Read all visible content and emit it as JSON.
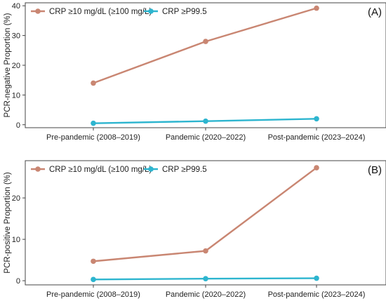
{
  "chart_data": [
    {
      "type": "line",
      "panel_label": "(A)",
      "ylabel": "PCR-negative Proportion (%)",
      "categories": [
        "Pre-pandemic (2008–2019)",
        "Pandemic (2020–2022)",
        "Post-pandemic (2023–2024)"
      ],
      "yticks": [
        0,
        10,
        20,
        30,
        40
      ],
      "ylim": [
        -1,
        41
      ],
      "grid": false,
      "legend_position": "top-left",
      "series": [
        {
          "name": "CRP ≥10 mg/dL (≥100 mg/L)",
          "color": "#c98672",
          "values": [
            14,
            28,
            39.2
          ]
        },
        {
          "name": "CRP ≥P99.5",
          "color": "#2db5cf",
          "values": [
            0.5,
            1.2,
            2
          ]
        }
      ]
    },
    {
      "type": "line",
      "panel_label": "(B)",
      "ylabel": "PCR-positive Proportion (%)",
      "categories": [
        "Pre-pandemic (2008–2019)",
        "Pandemic (2020–2022)",
        "Post-pandemic (2023–2024)"
      ],
      "yticks": [
        0,
        10,
        20
      ],
      "ylim": [
        -1,
        29
      ],
      "grid": false,
      "legend_position": "top-left",
      "series": [
        {
          "name": "CRP ≥10 mg/dL (≥100 mg/L)",
          "color": "#c98672",
          "values": [
            4.7,
            7.2,
            27.3
          ]
        },
        {
          "name": "CRP ≥P99.5",
          "color": "#2db5cf",
          "values": [
            0.3,
            0.5,
            0.6
          ]
        }
      ]
    }
  ]
}
